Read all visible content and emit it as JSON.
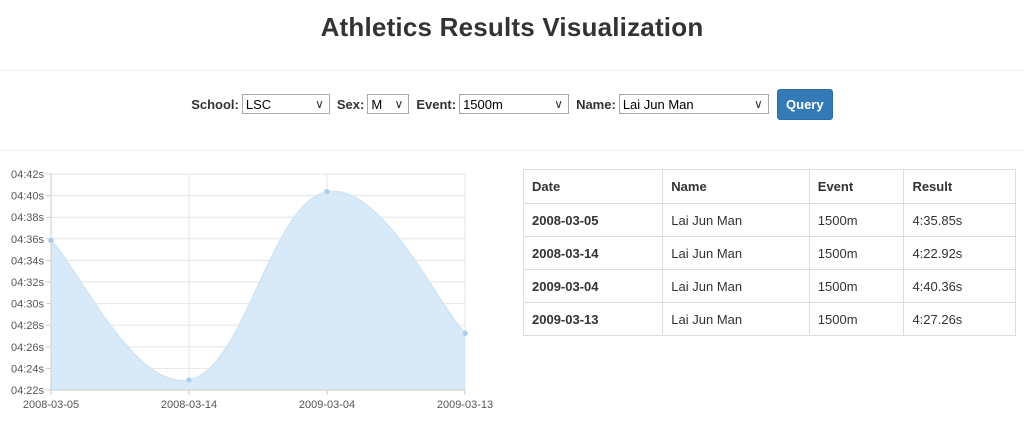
{
  "title": "Athletics Results Visualization",
  "filters": {
    "school": {
      "label": "School:",
      "value": "LSC"
    },
    "sex": {
      "label": "Sex:",
      "value": "M"
    },
    "event": {
      "label": "Event:",
      "value": "1500m"
    },
    "name": {
      "label": "Name:",
      "value": "Lai Jun Man"
    },
    "query_label": "Query"
  },
  "colors": {
    "accent": "#337ab7",
    "area_fill": "#d6e9f8",
    "area_point": "#aacde9"
  },
  "icons": {
    "dropdown": "chevron-down-icon"
  },
  "chart_data": {
    "type": "area",
    "x": [
      "2008-03-05",
      "2008-03-14",
      "2009-03-04",
      "2009-03-13"
    ],
    "values": [
      275.85,
      262.92,
      280.36,
      267.26
    ],
    "y_unit": "seconds",
    "ylim": [
      262,
      282
    ],
    "y_ticks": [
      262,
      264,
      266,
      268,
      270,
      272,
      274,
      276,
      278,
      280,
      282
    ],
    "y_tick_labels": [
      "04:22s",
      "04:24s",
      "04:26s",
      "04:28s",
      "04:30s",
      "04:32s",
      "04:34s",
      "04:36s",
      "04:38s",
      "04:40s",
      "04:42s"
    ],
    "grid": true,
    "title": "",
    "xlabel": "",
    "ylabel": ""
  },
  "table": {
    "headers": [
      "Date",
      "Name",
      "Event",
      "Result"
    ],
    "rows": [
      {
        "date": "2008-03-05",
        "name": "Lai Jun Man",
        "event": "1500m",
        "result": "4:35.85s"
      },
      {
        "date": "2008-03-14",
        "name": "Lai Jun Man",
        "event": "1500m",
        "result": "4:22.92s"
      },
      {
        "date": "2009-03-04",
        "name": "Lai Jun Man",
        "event": "1500m",
        "result": "4:40.36s"
      },
      {
        "date": "2009-03-13",
        "name": "Lai Jun Man",
        "event": "1500m",
        "result": "4:27.26s"
      }
    ]
  }
}
